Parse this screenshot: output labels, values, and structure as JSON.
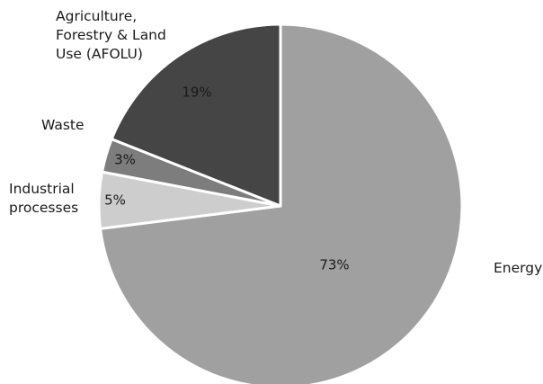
{
  "chart_data": {
    "type": "pie",
    "slices": [
      {
        "label": [
          "Energy"
        ],
        "value": 73,
        "pct_label": "73%",
        "color": "#a0a0a0"
      },
      {
        "label": [
          "Industrial",
          "processes"
        ],
        "value": 5,
        "pct_label": "5%",
        "color": "#cdcdcd"
      },
      {
        "label": [
          "Waste"
        ],
        "value": 3,
        "pct_label": "3%",
        "color": "#7d7d7d"
      },
      {
        "label": [
          "Agriculture,",
          "Forestry & Land",
          "Use (AFOLU)"
        ],
        "value": 19,
        "pct_label": "19%",
        "color": "#454545"
      }
    ]
  }
}
